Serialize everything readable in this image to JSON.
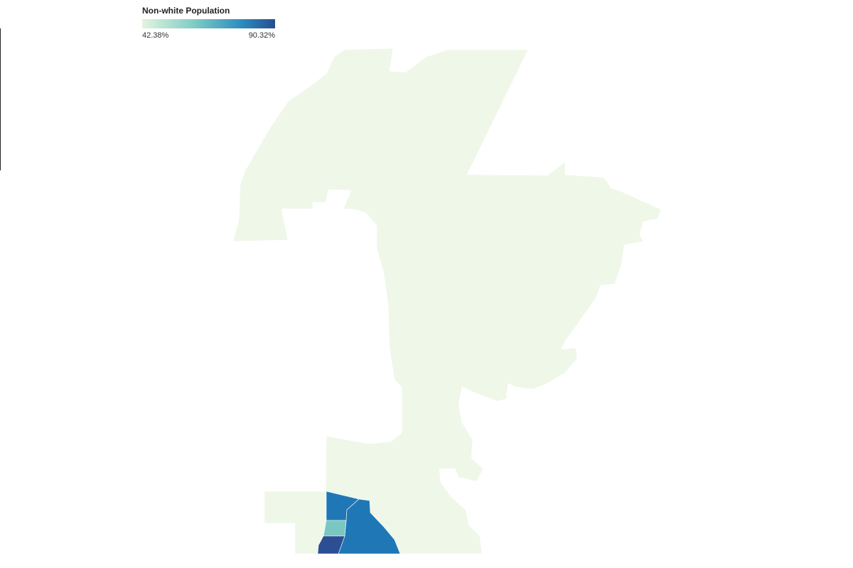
{
  "legend": {
    "title": "Non-white Population",
    "min_label": "42.38%",
    "max_label": "90.32%"
  }
}
